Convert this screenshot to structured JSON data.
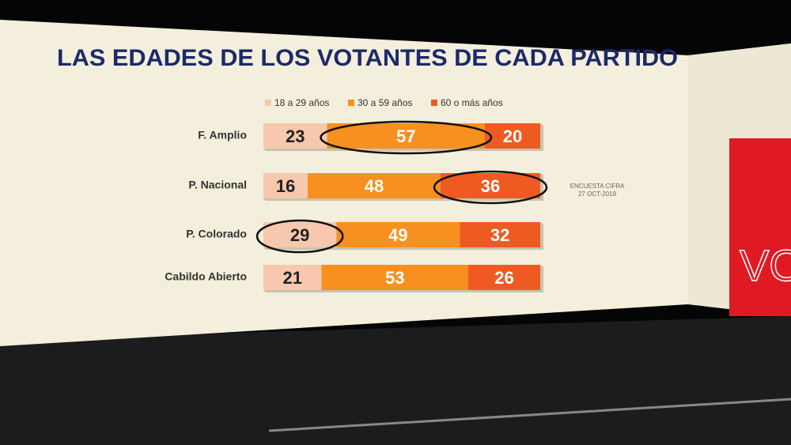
{
  "chart_data": {
    "type": "stacked-bar-percent",
    "title": "LAS EDADES DE LOS VOTANTES DE CADA PARTIDO",
    "categories": [
      "F. Amplio",
      "P. Nacional",
      "P. Colorado",
      "Cabildo Abierto"
    ],
    "series": [
      {
        "name": "18 a 29 años",
        "color": "#f7c8ad",
        "values": [
          23,
          16,
          29,
          21
        ]
      },
      {
        "name": "30 a 59 años",
        "color": "#f7901e",
        "values": [
          57,
          48,
          49,
          53
        ]
      },
      {
        "name": "60 o más años",
        "color": "#ef5a22",
        "values": [
          20,
          36,
          32,
          26
        ]
      }
    ],
    "annotations": [
      "ENCUESTA CIFRA",
      "27 OCT-2019"
    ]
  },
  "studio": {
    "panel_text": "VO"
  }
}
